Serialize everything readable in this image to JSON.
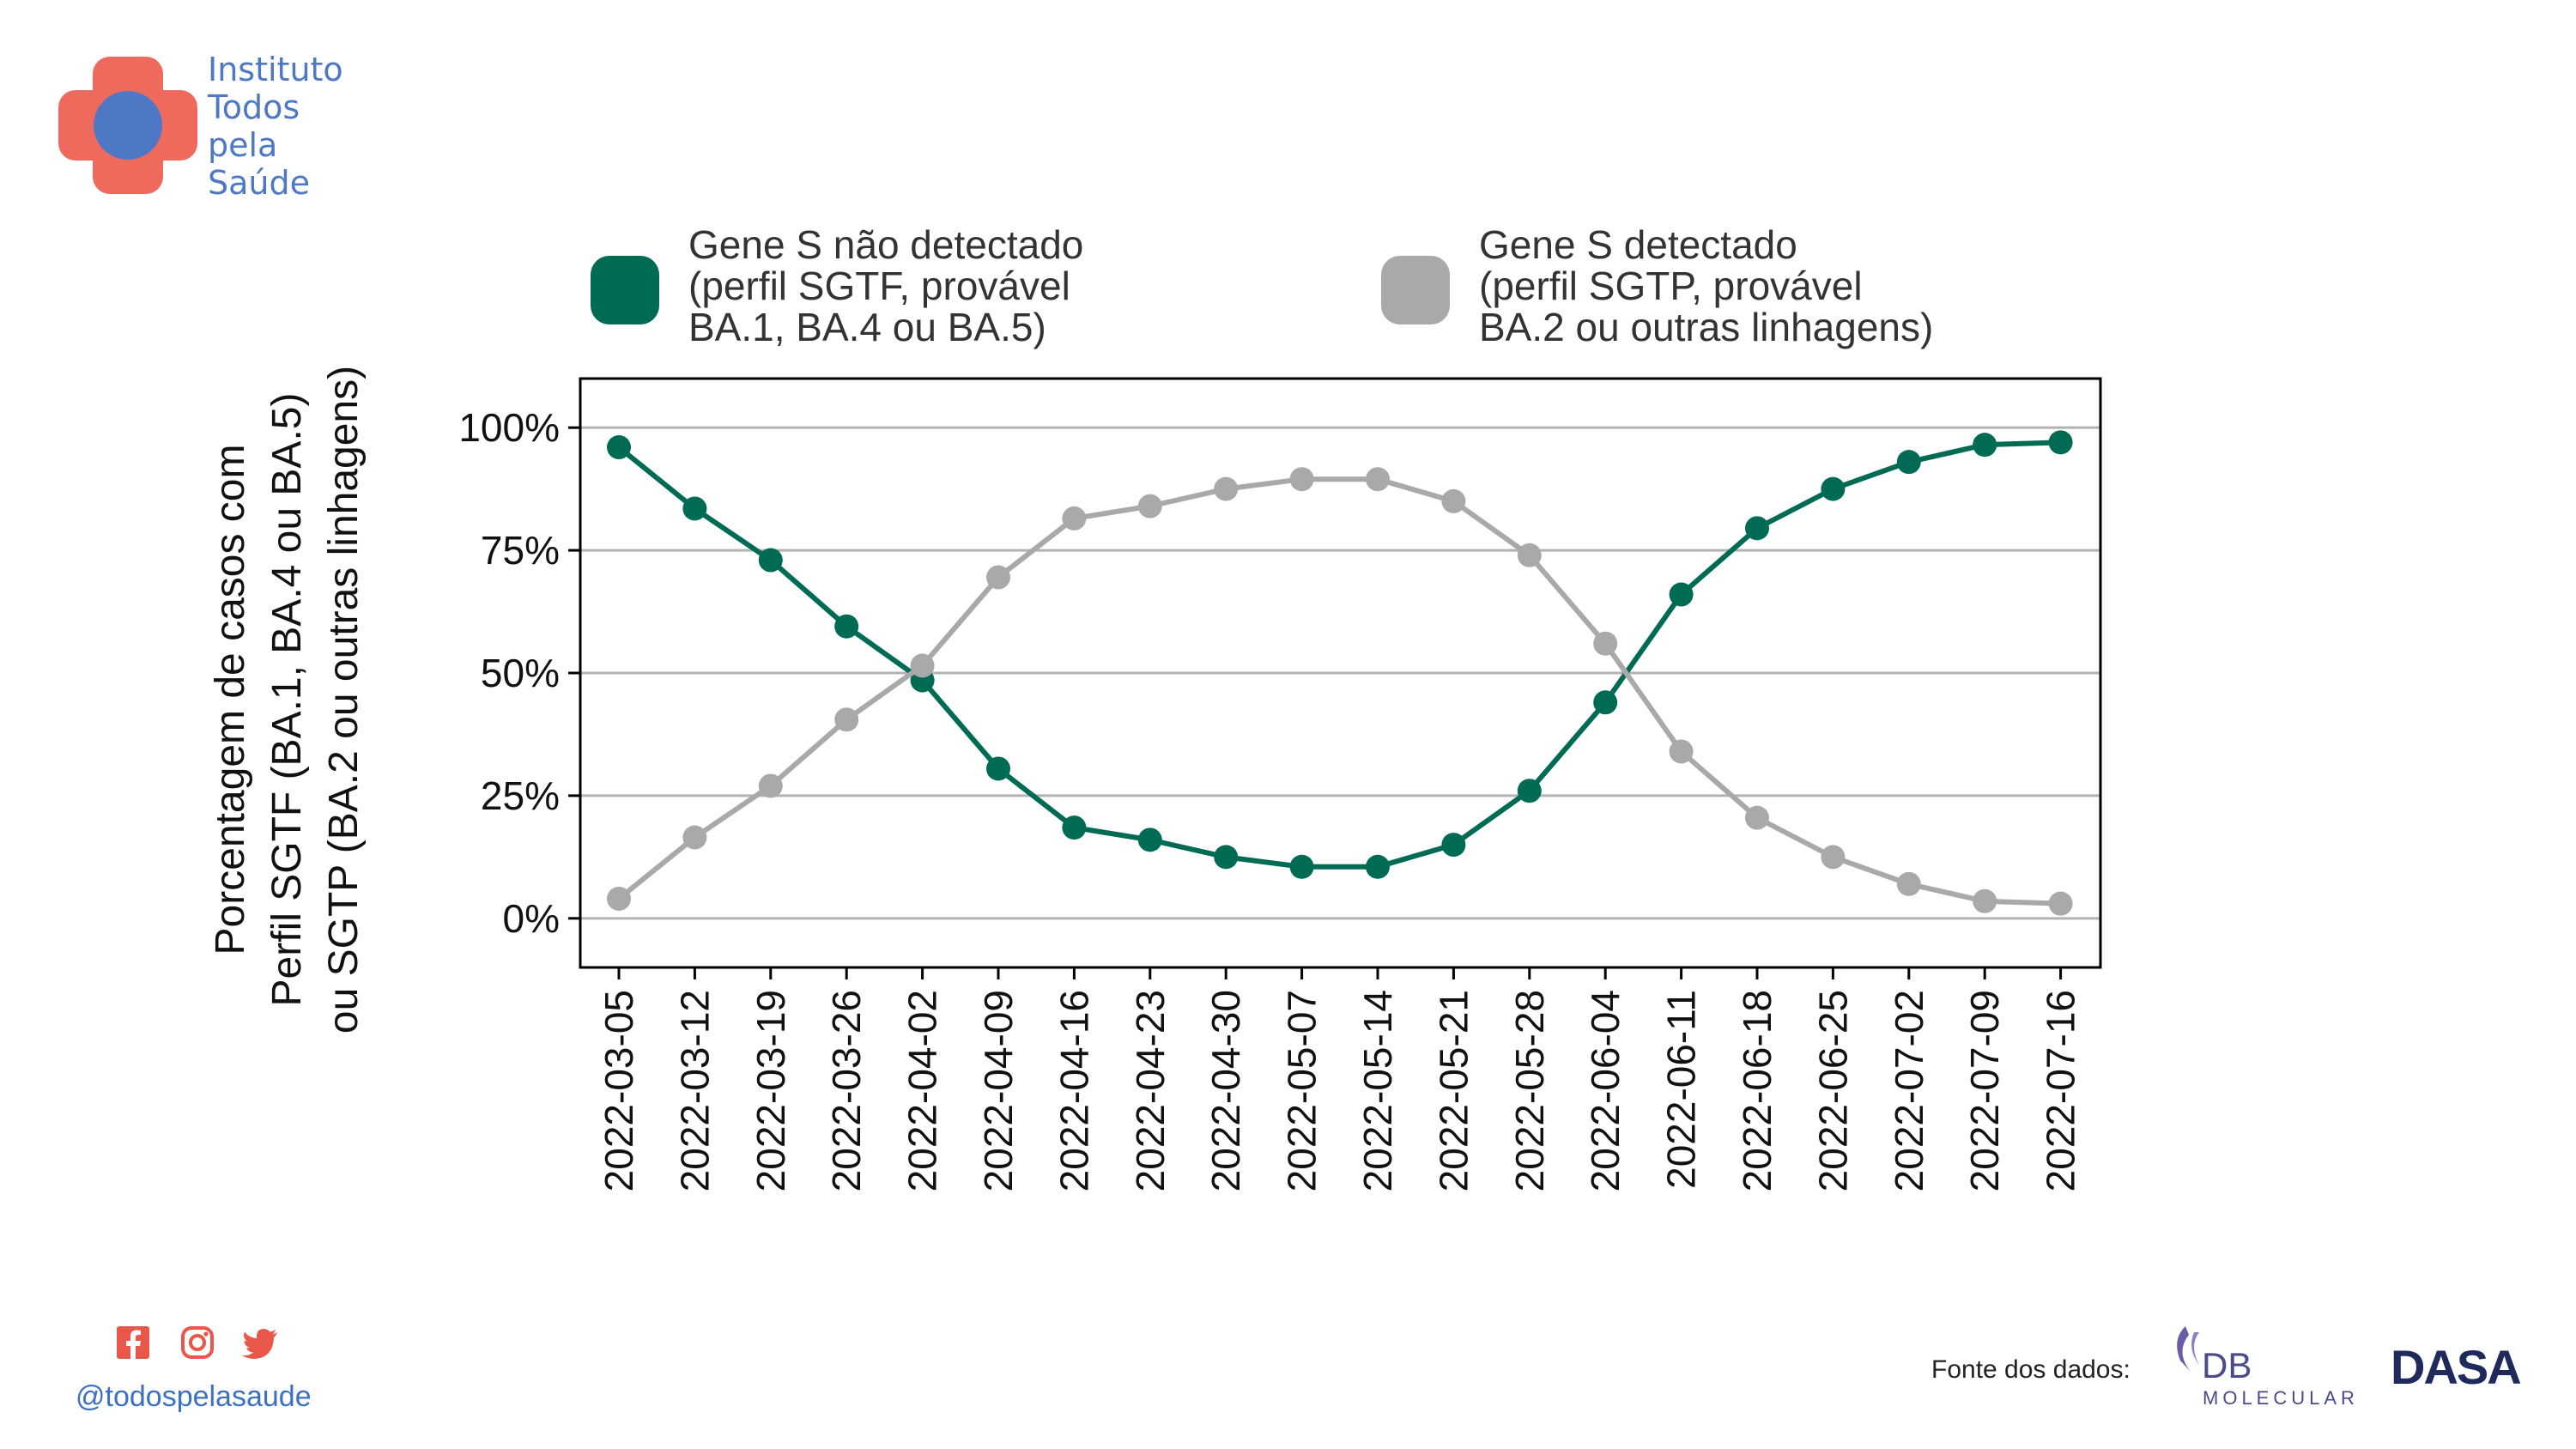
{
  "org": {
    "name_lines": [
      "Instituto",
      "Todos",
      "pela",
      "Saúde"
    ],
    "colors": {
      "cross": "#ee6a5d",
      "circle": "#4e78c4",
      "text": "#4e78c4"
    }
  },
  "social": {
    "handle": "@todospelasaude",
    "icons": [
      "facebook-icon",
      "instagram-icon",
      "twitter-icon"
    ],
    "icon_color": "#e8574a",
    "handle_color": "#3d6fc2"
  },
  "source": {
    "label": "Fonte dos dados:",
    "logos": [
      {
        "name": "DB",
        "sub": "MOLECULAR",
        "color": "#4a4a8c"
      },
      {
        "name": "DASA",
        "color": "#1f2a5c"
      }
    ]
  },
  "chart_data": {
    "type": "line",
    "x": [
      "2022-03-05",
      "2022-03-12",
      "2022-03-19",
      "2022-03-26",
      "2022-04-02",
      "2022-04-09",
      "2022-04-16",
      "2022-04-23",
      "2022-04-30",
      "2022-05-07",
      "2022-05-14",
      "2022-05-21",
      "2022-05-28",
      "2022-06-04",
      "2022-06-11",
      "2022-06-18",
      "2022-06-25",
      "2022-07-02",
      "2022-07-09",
      "2022-07-16"
    ],
    "series": [
      {
        "name_lines": [
          "Gene S não detectado",
          "(perfil SGTF, provável",
          "BA.1, BA.4 ou BA.5)"
        ],
        "color": "#006b55",
        "values": [
          96,
          83.5,
          73,
          59.5,
          48.5,
          30.5,
          18.5,
          16,
          12.5,
          10.5,
          10.5,
          15,
          26,
          44,
          66,
          79.5,
          87.5,
          93,
          96.5,
          97
        ]
      },
      {
        "name_lines": [
          "Gene S detectado",
          "(perfil SGTP, provável",
          "BA.2 ou outras linhagens)"
        ],
        "color": "#a9a9a9",
        "values": [
          4,
          16.5,
          27,
          40.5,
          51.5,
          69.5,
          81.5,
          84,
          87.5,
          89.5,
          89.5,
          85,
          74,
          56,
          34,
          20.5,
          12.5,
          7,
          3.5,
          3
        ]
      }
    ],
    "ylabel_lines": [
      "Porcentagem de casos com",
      "Perfil SGTF (BA.1, BA.4 ou BA.5)",
      "ou SGTP (BA.2 ou outras linhagens)"
    ],
    "yticks": [
      {
        "value": 0,
        "label": "0%"
      },
      {
        "value": 25,
        "label": "25%"
      },
      {
        "value": 50,
        "label": "50%"
      },
      {
        "value": 75,
        "label": "75%"
      },
      {
        "value": 100,
        "label": "100%"
      }
    ],
    "ylim": [
      -10,
      110
    ],
    "grid": "horizontal",
    "legend": "top"
  }
}
